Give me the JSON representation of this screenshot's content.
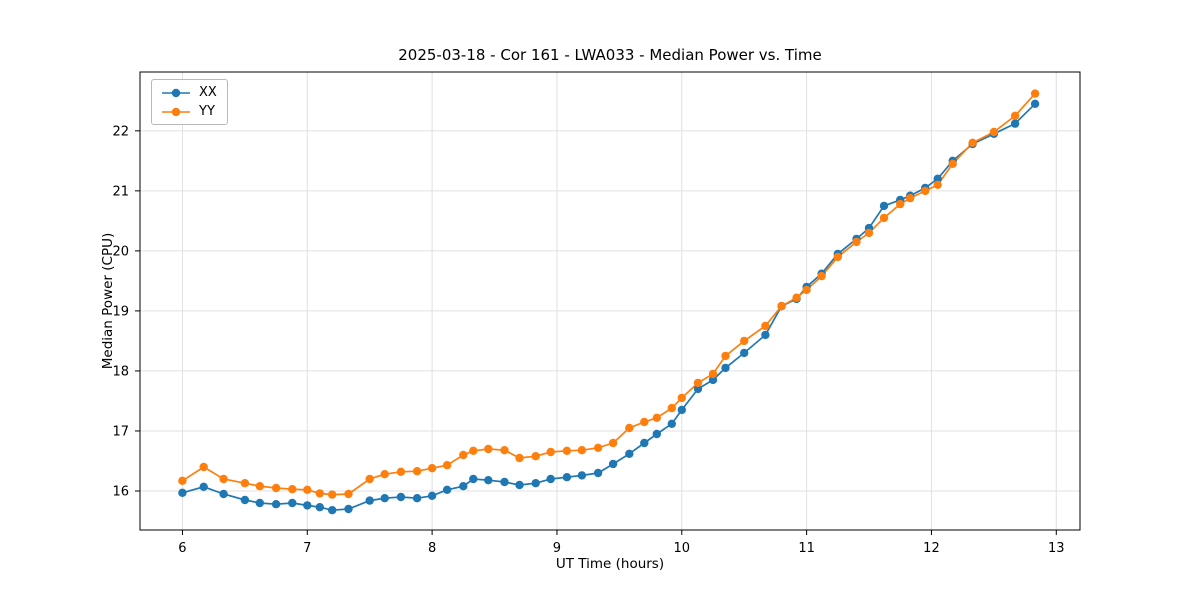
{
  "figure": {
    "background": "#ffffff",
    "grid_color": "#e0e0e0",
    "spine_color": "#000000"
  },
  "chart_data": {
    "type": "line",
    "title": "2025-03-18 - Cor 161 - LWA033 - Median Power vs. Time",
    "xlabel": "UT Time (hours)",
    "ylabel": "Median Power (CPU)",
    "xlim": [
      5.66,
      13.19
    ],
    "ylim": [
      15.35,
      22.98
    ],
    "xticks": [
      6,
      7,
      8,
      9,
      10,
      11,
      12,
      13
    ],
    "yticks": [
      16,
      17,
      18,
      19,
      20,
      21,
      22
    ],
    "grid": true,
    "legend_position": "upper left",
    "marker": "circle",
    "x": [
      6.0,
      6.17,
      6.33,
      6.5,
      6.62,
      6.75,
      6.88,
      7.0,
      7.1,
      7.2,
      7.33,
      7.5,
      7.62,
      7.75,
      7.88,
      8.0,
      8.12,
      8.25,
      8.33,
      8.45,
      8.58,
      8.7,
      8.83,
      8.95,
      9.08,
      9.2,
      9.33,
      9.45,
      9.58,
      9.7,
      9.8,
      9.92,
      10.0,
      10.13,
      10.25,
      10.35,
      10.5,
      10.67,
      10.8,
      10.92,
      11.0,
      11.12,
      11.25,
      11.4,
      11.5,
      11.62,
      11.75,
      11.83,
      11.95,
      12.05,
      12.17,
      12.33,
      12.5,
      12.67,
      12.83
    ],
    "series": [
      {
        "name": "XX",
        "color": "#1f77b4",
        "values": [
          15.97,
          16.07,
          15.95,
          15.85,
          15.8,
          15.78,
          15.8,
          15.76,
          15.73,
          15.68,
          15.7,
          15.84,
          15.88,
          15.9,
          15.88,
          15.92,
          16.02,
          16.08,
          16.2,
          16.18,
          16.15,
          16.1,
          16.13,
          16.2,
          16.23,
          16.26,
          16.3,
          16.45,
          16.62,
          16.8,
          16.95,
          17.12,
          17.35,
          17.7,
          17.85,
          18.05,
          18.3,
          18.6,
          19.08,
          19.2,
          19.4,
          19.62,
          19.95,
          20.2,
          20.38,
          20.75,
          20.85,
          20.92,
          21.05,
          21.2,
          21.5,
          21.78,
          21.95,
          22.12,
          22.45
        ]
      },
      {
        "name": "YY",
        "color": "#ff7f0e",
        "values": [
          16.17,
          16.4,
          16.2,
          16.13,
          16.08,
          16.05,
          16.03,
          16.02,
          15.96,
          15.94,
          15.95,
          16.2,
          16.28,
          16.32,
          16.33,
          16.38,
          16.43,
          16.6,
          16.67,
          16.7,
          16.68,
          16.55,
          16.58,
          16.65,
          16.67,
          16.68,
          16.72,
          16.8,
          17.05,
          17.15,
          17.22,
          17.38,
          17.55,
          17.8,
          17.95,
          18.25,
          18.5,
          18.75,
          19.08,
          19.22,
          19.35,
          19.58,
          19.9,
          20.15,
          20.3,
          20.55,
          20.78,
          20.88,
          21.0,
          21.1,
          21.45,
          21.8,
          21.98,
          22.25,
          22.62
        ]
      }
    ]
  }
}
